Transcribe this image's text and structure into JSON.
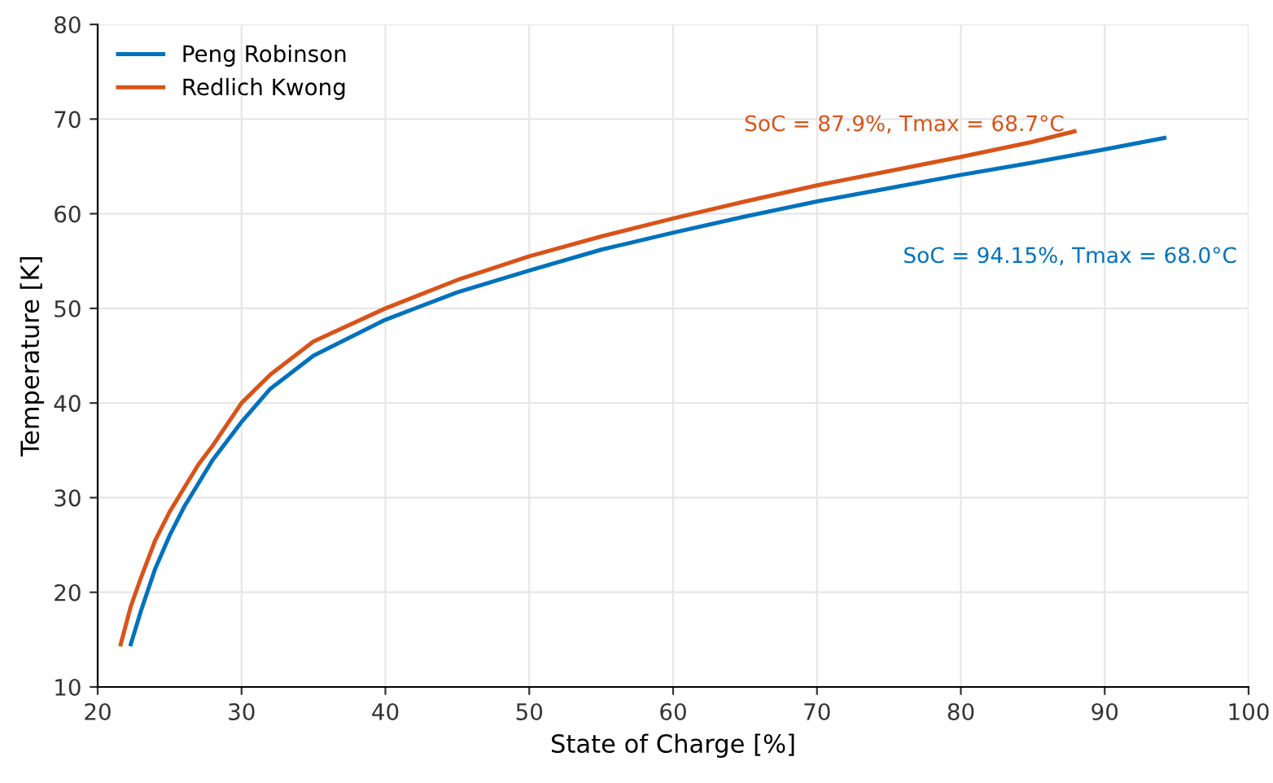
{
  "chart_data": {
    "type": "line",
    "xlabel": "State of Charge [%]",
    "ylabel": "Temperature [K]",
    "xlim": [
      20,
      100
    ],
    "xticks": [
      20,
      30,
      40,
      50,
      60,
      70,
      80,
      90,
      100
    ],
    "ylim": [
      10,
      80
    ],
    "yticks": [
      10,
      20,
      30,
      40,
      50,
      60,
      70,
      80
    ],
    "grid": true,
    "legend": "top left",
    "series": [
      {
        "name": "Peng Robinson",
        "color": "#0072bd",
        "x": [
          22.3,
          23,
          24,
          25,
          26,
          27,
          28,
          30,
          32,
          35,
          40,
          45,
          50,
          55,
          60,
          65,
          70,
          75,
          80,
          85,
          90,
          94.15
        ],
        "values": [
          14.5,
          18,
          22.5,
          26,
          29,
          31.5,
          34,
          38,
          41.5,
          45,
          48.8,
          51.7,
          54,
          56.2,
          58,
          59.7,
          61.3,
          62.7,
          64.1,
          65.4,
          66.8,
          68.0
        ]
      },
      {
        "name": "Redlich Kwong",
        "color": "#d95319",
        "x": [
          21.6,
          22.3,
          23,
          24,
          25,
          26,
          27,
          28,
          30,
          32,
          35,
          40,
          45,
          50,
          55,
          60,
          65,
          70,
          75,
          80,
          85,
          87.9
        ],
        "values": [
          14.5,
          18.5,
          21.5,
          25.5,
          28.5,
          31,
          33.5,
          35.5,
          40,
          43,
          46.5,
          50,
          53,
          55.5,
          57.6,
          59.5,
          61.3,
          63,
          64.5,
          66,
          67.6,
          68.7
        ]
      }
    ],
    "annotations": [
      "SoC = 94.15%, Tmax = 68.0°C",
      "SoC = 87.9%, Tmax = 68.7°C"
    ]
  }
}
